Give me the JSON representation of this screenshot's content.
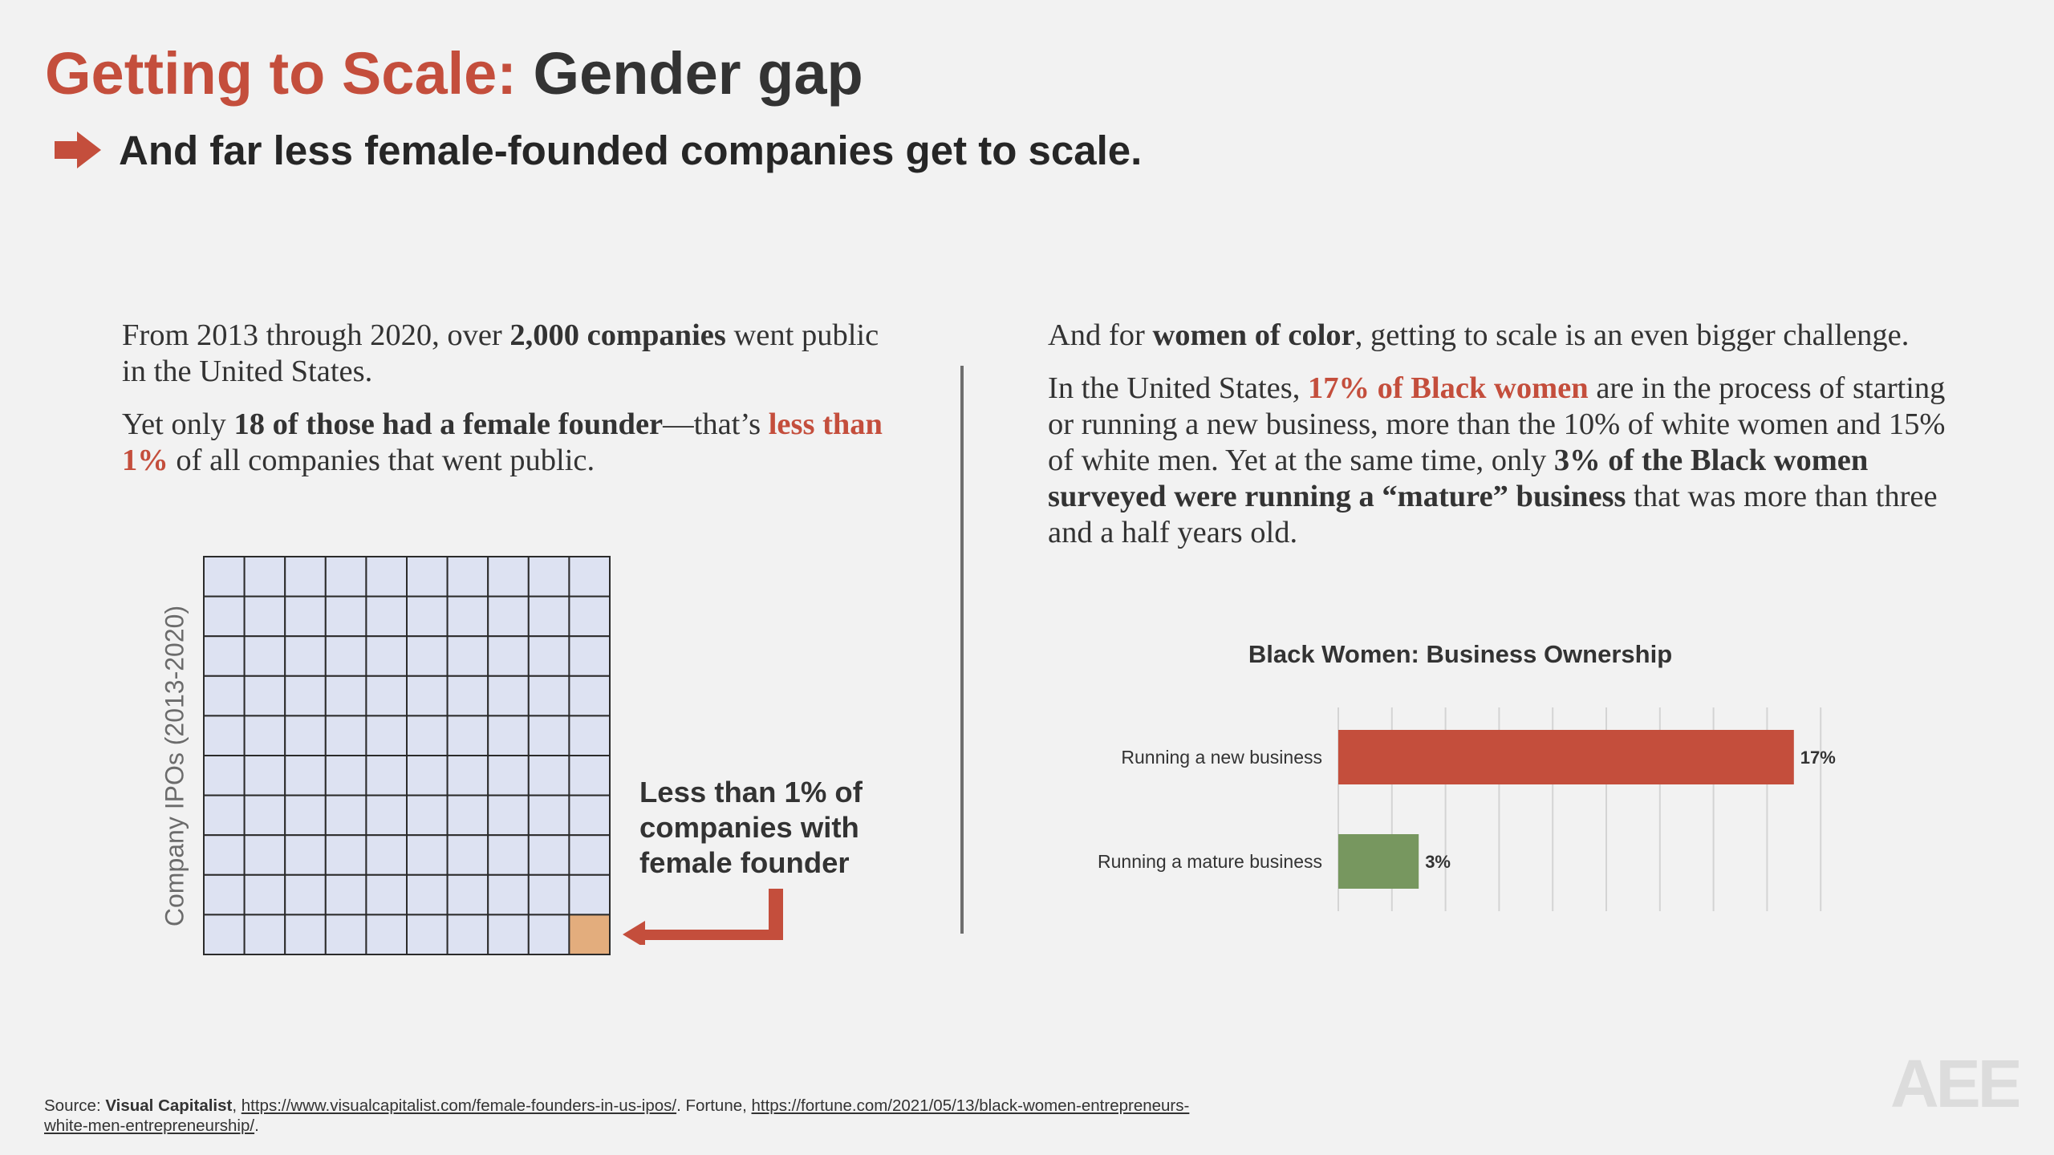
{
  "header": {
    "title_highlight": "Getting to Scale:",
    "title_rest": "Gender gap",
    "subtitle": "And far less female-founded companies get to scale.",
    "accent_color": "#c44e3c"
  },
  "left_column": {
    "p1": {
      "a": "From 2013 through 2020, over ",
      "b_bold": "2,000 companies",
      "c": " went public in the United States."
    },
    "p2": {
      "a": "Yet only ",
      "b_bold": "18 of those had a female founder",
      "c": "—that’s ",
      "d_red_bold": "less than 1%",
      "e": " of all companies that went public."
    }
  },
  "waffle": {
    "axis_label": "Company IPOs (2013-2020)",
    "rows": 10,
    "cols": 10,
    "highlighted_cells": 1,
    "fill_color": "#dde2f2",
    "highlight_color": "#e3ad7d",
    "annotation": "Less than 1% of companies with female founder"
  },
  "right_column": {
    "p1": {
      "a": "And for ",
      "b_bold": "women of color",
      "c": ", getting to scale is an even bigger challenge."
    },
    "p2": {
      "a": "In the United States, ",
      "b_red_bold": "17% of Black women",
      "c": " are in the process of starting or running a new business, more than the 10% of white women and 15% of white men. Yet at the same time, only ",
      "d_bold": "3% of the Black women surveyed were running a “mature” business",
      "e": " that was more than three and a half years old."
    }
  },
  "chart_data": {
    "type": "bar",
    "orientation": "horizontal",
    "title": "Black Women: Business Ownership",
    "categories": [
      "Running a new business",
      "Running a mature business"
    ],
    "values": [
      17,
      3
    ],
    "value_labels": [
      "17%",
      "3%"
    ],
    "colors": [
      "#c44e3c",
      "#77975f"
    ],
    "xlim": [
      0,
      18
    ],
    "grid": true
  },
  "footer": {
    "source_prefix": "Source: ",
    "source_name": "Visual Capitalist",
    "sep1": ", ",
    "link1": "https://www.visualcapitalist.com/female-founders-in-us-ipos/",
    "sep2": ". Fortune, ",
    "link2": "https://fortune.com/2021/05/13/black-women-entrepreneurs-white-men-entrepreneurship/",
    "end": "."
  },
  "logo": {
    "text": "AEE"
  }
}
